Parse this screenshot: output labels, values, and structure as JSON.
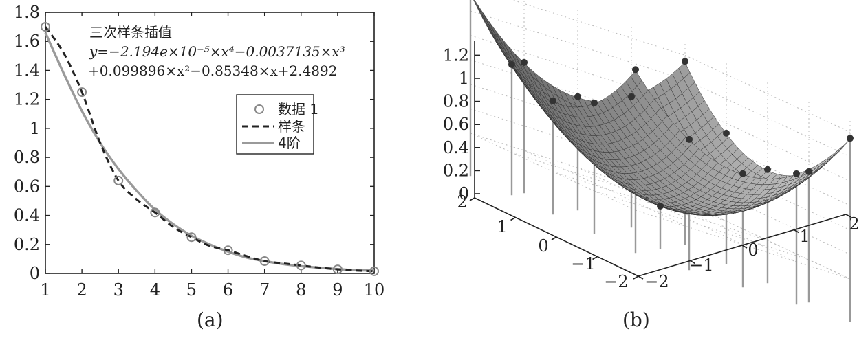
{
  "chart_data": [
    {
      "panel": "a",
      "caption": "(a)",
      "type": "line",
      "xlim": [
        1,
        10
      ],
      "ylim": [
        0,
        1.8
      ],
      "xticks": [
        "1",
        "2",
        "3",
        "4",
        "5",
        "6",
        "7",
        "8",
        "9",
        "10"
      ],
      "yticks": [
        "0",
        "0.2",
        "0.4",
        "0.6",
        "0.8",
        "1",
        "1.2",
        "1.4",
        "1.6",
        "1.8"
      ],
      "grid": false,
      "legend_position": "right",
      "annotation": {
        "title": "三次样条插值",
        "line1": "y=−2.194e×10⁻⁵×x⁴−0.0037135×x³",
        "line2": "+0.099896×x²−0.85348×x+2.4892"
      },
      "series": [
        {
          "name": "数据 1",
          "style": "markers",
          "x": [
            1,
            2,
            3,
            4,
            5,
            6,
            7,
            8,
            9,
            10
          ],
          "y": [
            1.7,
            1.25,
            0.64,
            0.42,
            0.25,
            0.16,
            0.085,
            0.055,
            0.028,
            0.015
          ]
        },
        {
          "name": "样条",
          "style": "dashed",
          "x": [
            1,
            1.5,
            2,
            2.5,
            3,
            3.5,
            4,
            4.5,
            5,
            5.5,
            6,
            6.5,
            7,
            7.5,
            8,
            8.5,
            9,
            9.5,
            10
          ],
          "y": [
            1.7,
            1.52,
            1.25,
            0.9,
            0.64,
            0.51,
            0.42,
            0.32,
            0.25,
            0.19,
            0.16,
            0.12,
            0.085,
            0.07,
            0.055,
            0.04,
            0.028,
            0.02,
            0.015
          ]
        },
        {
          "name": "4阶",
          "style": "solid",
          "x": [
            1,
            1.5,
            2,
            2.5,
            3,
            3.5,
            4,
            4.5,
            5,
            5.5,
            6,
            6.5,
            7,
            7.5,
            8,
            8.5,
            9,
            9.5,
            10
          ],
          "y": [
            1.66,
            1.38,
            1.12,
            0.9,
            0.72,
            0.57,
            0.44,
            0.34,
            0.26,
            0.2,
            0.15,
            0.11,
            0.085,
            0.065,
            0.05,
            0.04,
            0.03,
            0.022,
            0.02
          ]
        }
      ],
      "colors": {
        "markers": "#888888",
        "dashed": "#222222",
        "solid": "#9a9a9a"
      }
    },
    {
      "panel": "b",
      "caption": "(b)",
      "type": "surface",
      "description_function": "z = (x^2 + y^2) / 7 approx, paraboloid",
      "xlim": [
        -2,
        2
      ],
      "ylim": [
        -2,
        2
      ],
      "zlim": [
        0,
        1.2
      ],
      "xticks": [
        "−2",
        "−1",
        "0",
        "1",
        "2"
      ],
      "yticks": [
        "−2",
        "−1",
        "0",
        "1",
        "2"
      ],
      "zticks": [
        "0",
        "0.2",
        "0.4",
        "0.6",
        "0.8",
        "1",
        "1.2"
      ],
      "grid": true,
      "stem_points": [
        {
          "x": -2,
          "y": -2,
          "z": 1.15
        },
        {
          "x": 2,
          "y": 2,
          "z": 1.15
        },
        {
          "x": -2,
          "y": 2,
          "z": 1.15
        },
        {
          "x": 2,
          "y": -2,
          "z": 1.15
        },
        {
          "x": -1,
          "y": -2,
          "z": 0.72
        },
        {
          "x": 0,
          "y": -2,
          "z": 0.58
        },
        {
          "x": 1,
          "y": -2,
          "z": 0.72
        },
        {
          "x": -2,
          "y": -1,
          "z": 0.72
        },
        {
          "x": -2,
          "y": 0,
          "z": 0.58
        },
        {
          "x": -2,
          "y": 1,
          "z": 0.72
        },
        {
          "x": 2,
          "y": -1,
          "z": 0.72
        },
        {
          "x": 2,
          "y": 0,
          "z": 0.58
        },
        {
          "x": 2,
          "y": 1,
          "z": 0.72
        },
        {
          "x": -1,
          "y": 2,
          "z": 0.72
        },
        {
          "x": 0,
          "y": 2,
          "z": 0.58
        },
        {
          "x": 1,
          "y": 2,
          "z": 0.72
        },
        {
          "x": 0,
          "y": 0,
          "z": 0.0
        }
      ]
    }
  ]
}
